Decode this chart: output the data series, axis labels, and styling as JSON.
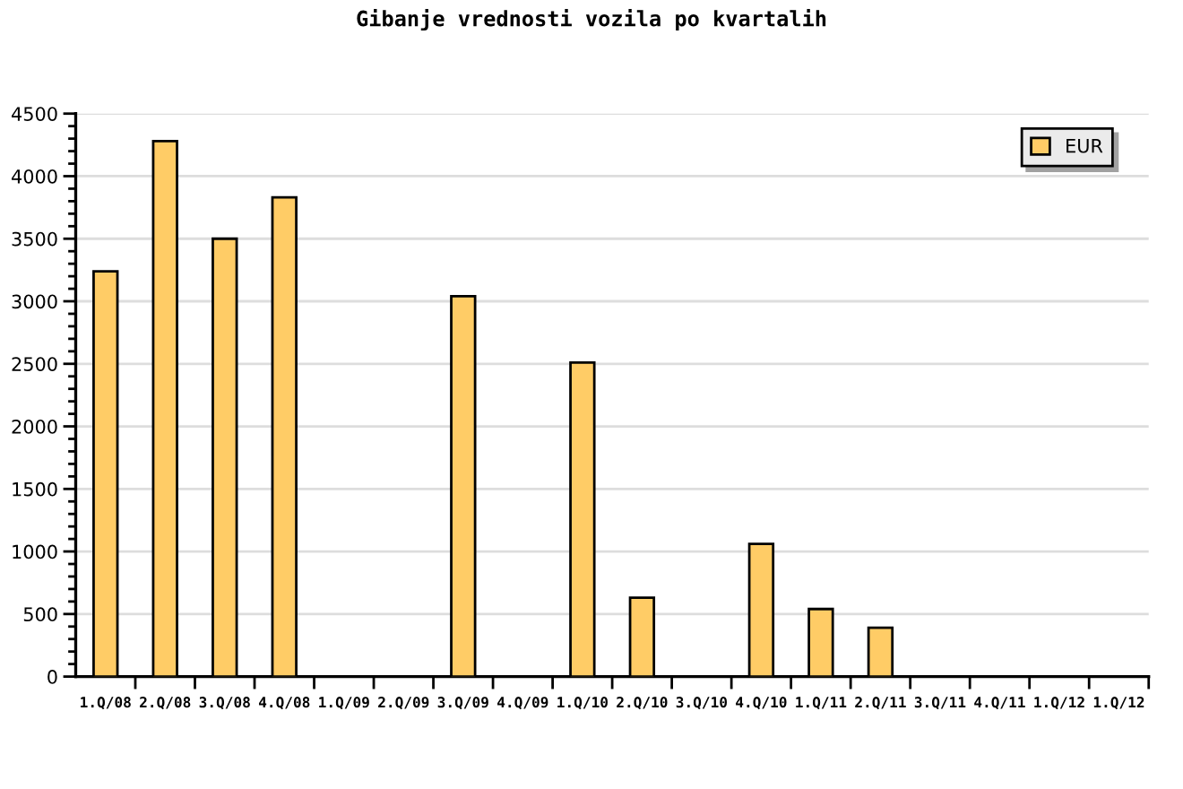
{
  "chart_data": {
    "type": "bar",
    "title": "Gibanje vrednosti vozila po kvartalih",
    "categories": [
      "1.Q/08",
      "2.Q/08",
      "3.Q/08",
      "4.Q/08",
      "1.Q/09",
      "2.Q/09",
      "3.Q/09",
      "4.Q/09",
      "1.Q/10",
      "2.Q/10",
      "3.Q/10",
      "4.Q/10",
      "1.Q/11",
      "2.Q/11",
      "3.Q/11",
      "4.Q/11",
      "1.Q/12",
      "1.Q/12"
    ],
    "series": [
      {
        "name": "EUR",
        "color": "#ffcc66",
        "values": [
          3240,
          4280,
          3500,
          3830,
          null,
          null,
          3040,
          null,
          2510,
          630,
          null,
          1060,
          540,
          390,
          null,
          null,
          null,
          null
        ]
      }
    ],
    "ylim": [
      0,
      4500
    ],
    "yticks": [
      0,
      500,
      1000,
      1500,
      2000,
      2500,
      3000,
      3500,
      4000,
      4500
    ],
    "grid": "y",
    "legend": "top right"
  }
}
